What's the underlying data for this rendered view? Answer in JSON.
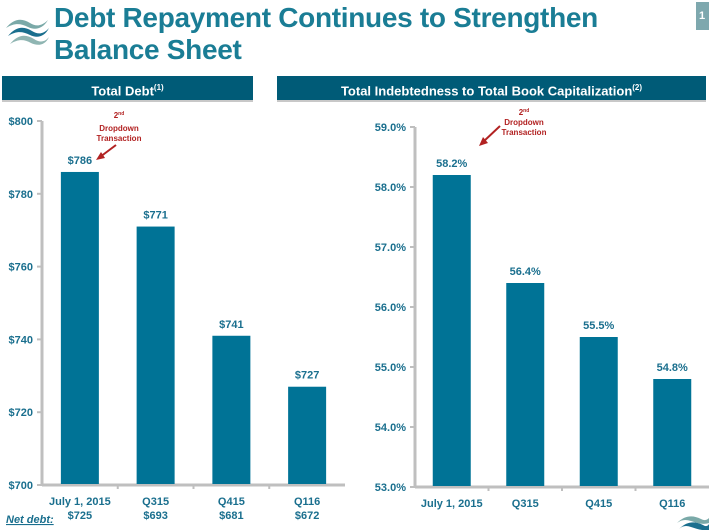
{
  "header": {
    "title_line1": "Debt Repayment Continues to Strengthen",
    "title_line2": "Balance Sheet",
    "page_number": "1",
    "logo_icon": "wave-logo-icon"
  },
  "colors": {
    "title": "#1a7d95",
    "header_bar": "#005b77",
    "bar": "#007396",
    "annotation": "#b22222",
    "axis": "#bfbfbf"
  },
  "annotation": {
    "superscript": "nd",
    "number": "2",
    "line1": "Dropdown",
    "line2": "Transaction"
  },
  "net_debt": {
    "label": "Net debt:",
    "values": [
      "$725",
      "$693",
      "$681",
      "$672"
    ]
  },
  "chart_data": [
    {
      "type": "bar",
      "title": "Total Debt",
      "title_footnote": "(1)",
      "categories": [
        "July 1, 2015",
        "Q315",
        "Q415",
        "Q116"
      ],
      "values": [
        786,
        771,
        741,
        727
      ],
      "value_labels": [
        "$786",
        "$771",
        "$741",
        "$727"
      ],
      "ylim": [
        700,
        800
      ],
      "yticks": [
        700,
        720,
        740,
        760,
        780,
        800
      ],
      "ytick_labels": [
        "$700",
        "$720",
        "$740",
        "$760",
        "$780",
        "$800"
      ],
      "xlabel": "",
      "ylabel": "",
      "grid": false
    },
    {
      "type": "bar",
      "title": "Total Indebtedness to Total Book Capitalization",
      "title_footnote": "(2)",
      "categories": [
        "July 1, 2015",
        "Q315",
        "Q415",
        "Q116"
      ],
      "values": [
        58.2,
        56.4,
        55.5,
        54.8
      ],
      "value_labels": [
        "58.2%",
        "56.4%",
        "55.5%",
        "54.8%"
      ],
      "ylim": [
        53.0,
        59.0
      ],
      "yticks": [
        53,
        54,
        55,
        56,
        57,
        58,
        59
      ],
      "ytick_labels": [
        "53.0%",
        "54.0%",
        "55.0%",
        "56.0%",
        "57.0%",
        "58.0%",
        "59.0%"
      ],
      "xlabel": "",
      "ylabel": "",
      "grid": false
    }
  ]
}
